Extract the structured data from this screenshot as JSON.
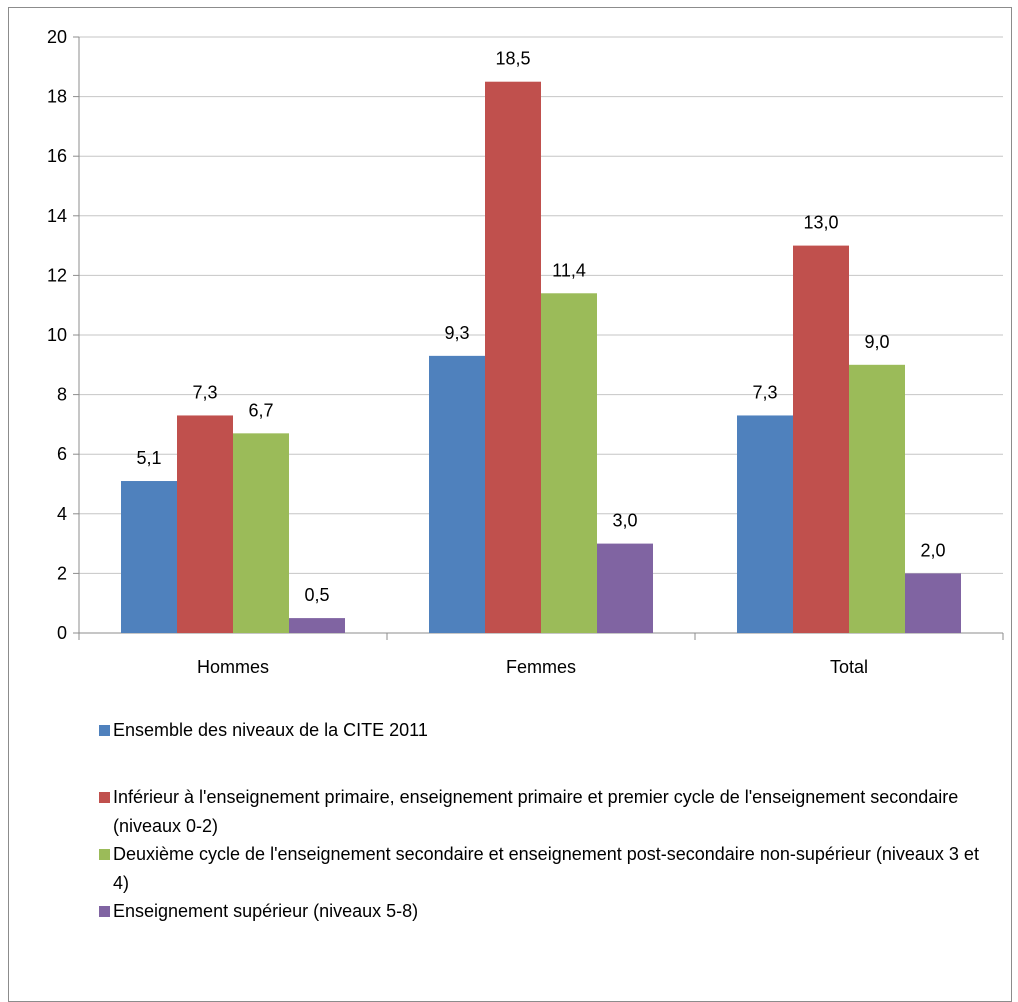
{
  "chart_data": {
    "type": "bar",
    "categories": [
      "Hommes",
      "Femmes",
      "Total"
    ],
    "ylim": [
      0,
      20
    ],
    "yticks": [
      0,
      2,
      4,
      6,
      8,
      10,
      12,
      14,
      16,
      18,
      20
    ],
    "grid": true,
    "legend_position": "bottom",
    "series": [
      {
        "name": "Ensemble des niveaux de la CITE 2011",
        "color": "#4f81bd",
        "values": [
          5.1,
          9.3,
          7.3
        ],
        "labels": [
          "5,1",
          "9,3",
          "7,3"
        ]
      },
      {
        "name": "Inférieur à l'enseignement primaire, enseignement primaire et premier cycle de l'enseignement secondaire (niveaux 0-2)",
        "color": "#c0504d",
        "values": [
          7.3,
          18.5,
          13.0
        ],
        "labels": [
          "7,3",
          "18,5",
          "13,0"
        ]
      },
      {
        "name": "Deuxième cycle de l'enseignement secondaire et enseignement post-secondaire non-supérieur (niveaux 3 et 4)",
        "color": "#9bbb59",
        "values": [
          6.7,
          11.4,
          9.0
        ],
        "labels": [
          "6,7",
          "11,4",
          "9,0"
        ]
      },
      {
        "name": "Enseignement supérieur (niveaux 5-8)",
        "color": "#8064a2",
        "values": [
          0.5,
          3.0,
          2.0
        ],
        "labels": [
          "0,5",
          "3,0",
          "2,0"
        ]
      }
    ]
  }
}
